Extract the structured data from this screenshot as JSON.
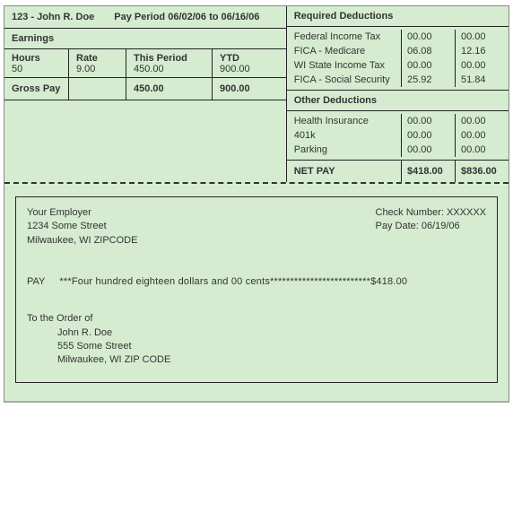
{
  "header": {
    "employee_id_name": "123 - John R. Doe",
    "pay_period_label": "Pay Period 06/02/06 to 06/16/06"
  },
  "earnings": {
    "section_title": "Earnings",
    "columns": {
      "hours": "Hours",
      "rate": "Rate",
      "this_period": "This Period",
      "ytd": "YTD"
    },
    "row": {
      "hours": "50",
      "rate": "9.00",
      "this_period": "450.00",
      "ytd": "900.00"
    },
    "gross": {
      "label": "Gross Pay",
      "this_period": "450.00",
      "ytd": "900.00"
    }
  },
  "deductions": {
    "required": {
      "title": "Required Deductions",
      "rows": [
        {
          "label": "Federal Income Tax",
          "v1": "00.00",
          "v2": "00.00"
        },
        {
          "label": "FICA - Medicare",
          "v1": "06.08",
          "v2": "12.16"
        },
        {
          "label": "WI State Income Tax",
          "v1": "00.00",
          "v2": "00.00"
        },
        {
          "label": "FICA - Social Security",
          "v1": "25.92",
          "v2": "51.84"
        }
      ]
    },
    "other": {
      "title": "Other Deductions",
      "rows": [
        {
          "label": "Health Insurance",
          "v1": "00.00",
          "v2": "00.00"
        },
        {
          "label": "401k",
          "v1": "00.00",
          "v2": "00.00"
        },
        {
          "label": "Parking",
          "v1": "00.00",
          "v2": "00.00"
        }
      ]
    },
    "net": {
      "label": "NET PAY",
      "v1": "$418.00",
      "v2": "$836.00"
    }
  },
  "check": {
    "employer": {
      "name": "Your Employer",
      "street": "1234 Some Street",
      "city_state_zip": "Milwaukee, WI ZIPCODE"
    },
    "meta": {
      "check_number_label": "Check Number: XXXXXX",
      "pay_date_label": "Pay Date: 06/19/06"
    },
    "pay_label": "PAY",
    "pay_written": "***Four hundred eighteen dollars and 00 cents*************************$418.00",
    "order": {
      "title": "To the Order of",
      "name": "John R. Doe",
      "street": "555 Some Street",
      "city_state_zip": "Milwaukee, WI ZIP CODE"
    }
  },
  "colors": {
    "background": "#d5ecd0",
    "border": "#222222",
    "text": "#333333"
  }
}
